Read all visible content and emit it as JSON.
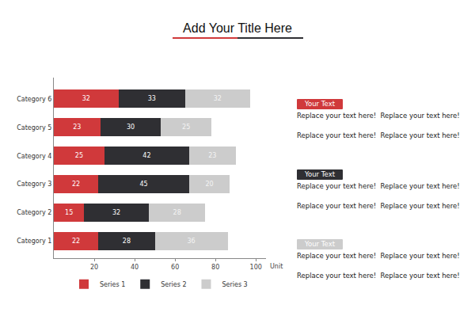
{
  "chart_data": {
    "type": "bar",
    "title": "Add Your Title Here",
    "orientation": "horizontal",
    "stacked": true,
    "data_labels": true,
    "legend": "bottom",
    "grid": false,
    "x_label": "Unit",
    "categories": [
      "Category 1",
      "Category 2",
      "Category 3",
      "Category 4",
      "Category 5",
      "Category 6"
    ],
    "series": [
      {
        "name": "Series 1",
        "color": "#d0393b",
        "values": [
          22,
          15,
          22,
          25,
          23,
          32
        ]
      },
      {
        "name": "Series 2",
        "color": "#2f2f33",
        "values": [
          28,
          32,
          45,
          42,
          30,
          33
        ]
      },
      {
        "name": "Series 3",
        "color": "#cccccc",
        "values": [
          36,
          28,
          20,
          23,
          25,
          32
        ]
      }
    ],
    "xlim": [
      0,
      105
    ],
    "xticks": [
      20,
      40,
      60,
      80,
      100
    ],
    "annotations": [
      {
        "heading": "Your Text",
        "lines": [
          "Replace your text here!  Replace your text here!",
          "Replace your text here!  Replace your text here!"
        ]
      },
      {
        "heading": "Your Text",
        "lines": [
          "Replace your text here!  Replace your text here!",
          "Replace your text here!  Replace your text here!"
        ]
      },
      {
        "heading": "Your Text",
        "lines": [
          "Replace your text here!  Replace your text here!",
          "Replace your text here!  Replace your text here!"
        ]
      }
    ]
  }
}
